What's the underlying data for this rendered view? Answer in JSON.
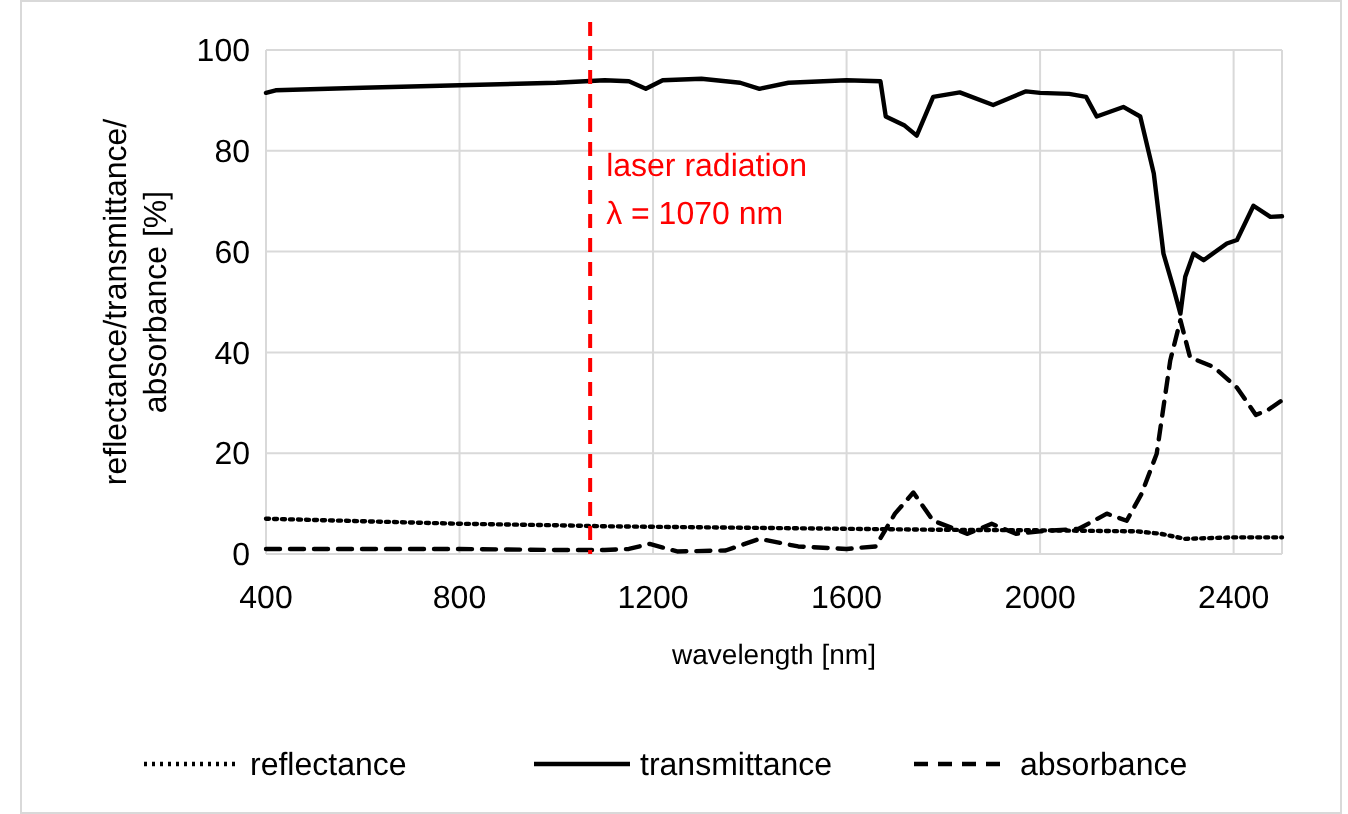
{
  "chart_data": {
    "type": "line",
    "xlabel": "wavelength [nm]",
    "ylabel": "reflectance/transmittance/\nabsorbance [%]",
    "xlim": [
      400,
      2500
    ],
    "xticks": [
      400,
      800,
      1200,
      1600,
      2000,
      2400
    ],
    "ylim": [
      0,
      100
    ],
    "yticks": [
      0,
      20,
      40,
      60,
      80,
      100
    ],
    "grid": true,
    "legend": "bottom",
    "marker": "none",
    "ref_lines": [
      {
        "axis": "x",
        "value": 1070,
        "label": "laser radiation\nλ = 1070 nm",
        "color": "#ff0000",
        "line_style": "dashed"
      }
    ],
    "series": [
      {
        "name": "reflectance",
        "color": "#000000",
        "line_style": "dotted",
        "x": [
          400,
          600,
          800,
          1000,
          1100,
          1300,
          1600,
          1800,
          2000,
          2200,
          2250,
          2300,
          2400,
          2500
        ],
        "values": [
          7,
          6.5,
          6,
          5.7,
          5.5,
          5.3,
          5,
          4.8,
          4.7,
          4.5,
          4,
          3,
          3.3,
          3.3
        ]
      },
      {
        "name": "transmittance",
        "color": "#000000",
        "line_style": "solid",
        "x": [
          400,
          420,
          600,
          800,
          1000,
          1100,
          1150,
          1185,
          1220,
          1300,
          1380,
          1420,
          1480,
          1600,
          1670,
          1681,
          1720,
          1745,
          1779,
          1834,
          1903,
          1971,
          2000,
          2060,
          2095,
          2117,
          2172,
          2207,
          2235,
          2255,
          2275,
          2290,
          2300,
          2317,
          2338,
          2386,
          2407,
          2441,
          2476,
          2500
        ],
        "values": [
          91.5,
          92,
          92.5,
          93,
          93.5,
          94,
          93.8,
          92.3,
          94,
          94.3,
          93.5,
          92.3,
          93.5,
          94,
          93.8,
          86.8,
          85,
          83,
          90.7,
          91.6,
          89.1,
          91.8,
          91.5,
          91.3,
          90.7,
          86.8,
          88.7,
          86.8,
          75.5,
          59.6,
          53,
          47.7,
          55,
          59.6,
          58.3,
          61.6,
          62.3,
          69.1,
          66.9,
          67
        ]
      },
      {
        "name": "absorbance",
        "color": "#000000",
        "line_style": "dashed",
        "x": [
          400,
          600,
          800,
          1000,
          1100,
          1150,
          1193,
          1250,
          1350,
          1420,
          1500,
          1600,
          1660,
          1700,
          1738,
          1779,
          1850,
          1900,
          1950,
          2000,
          2080,
          2138,
          2179,
          2210,
          2241,
          2269,
          2290,
          2310,
          2359,
          2407,
          2446,
          2470,
          2500
        ],
        "values": [
          1,
          1,
          1,
          0.8,
          0.8,
          1,
          2,
          0.5,
          0.7,
          3,
          1.5,
          1,
          1.5,
          8,
          12.2,
          6.6,
          4,
          6,
          4,
          4.5,
          5,
          8,
          6.6,
          12,
          19.9,
          38.4,
          46.4,
          39,
          37.1,
          33,
          27.6,
          28.5,
          30.5
        ]
      }
    ]
  }
}
